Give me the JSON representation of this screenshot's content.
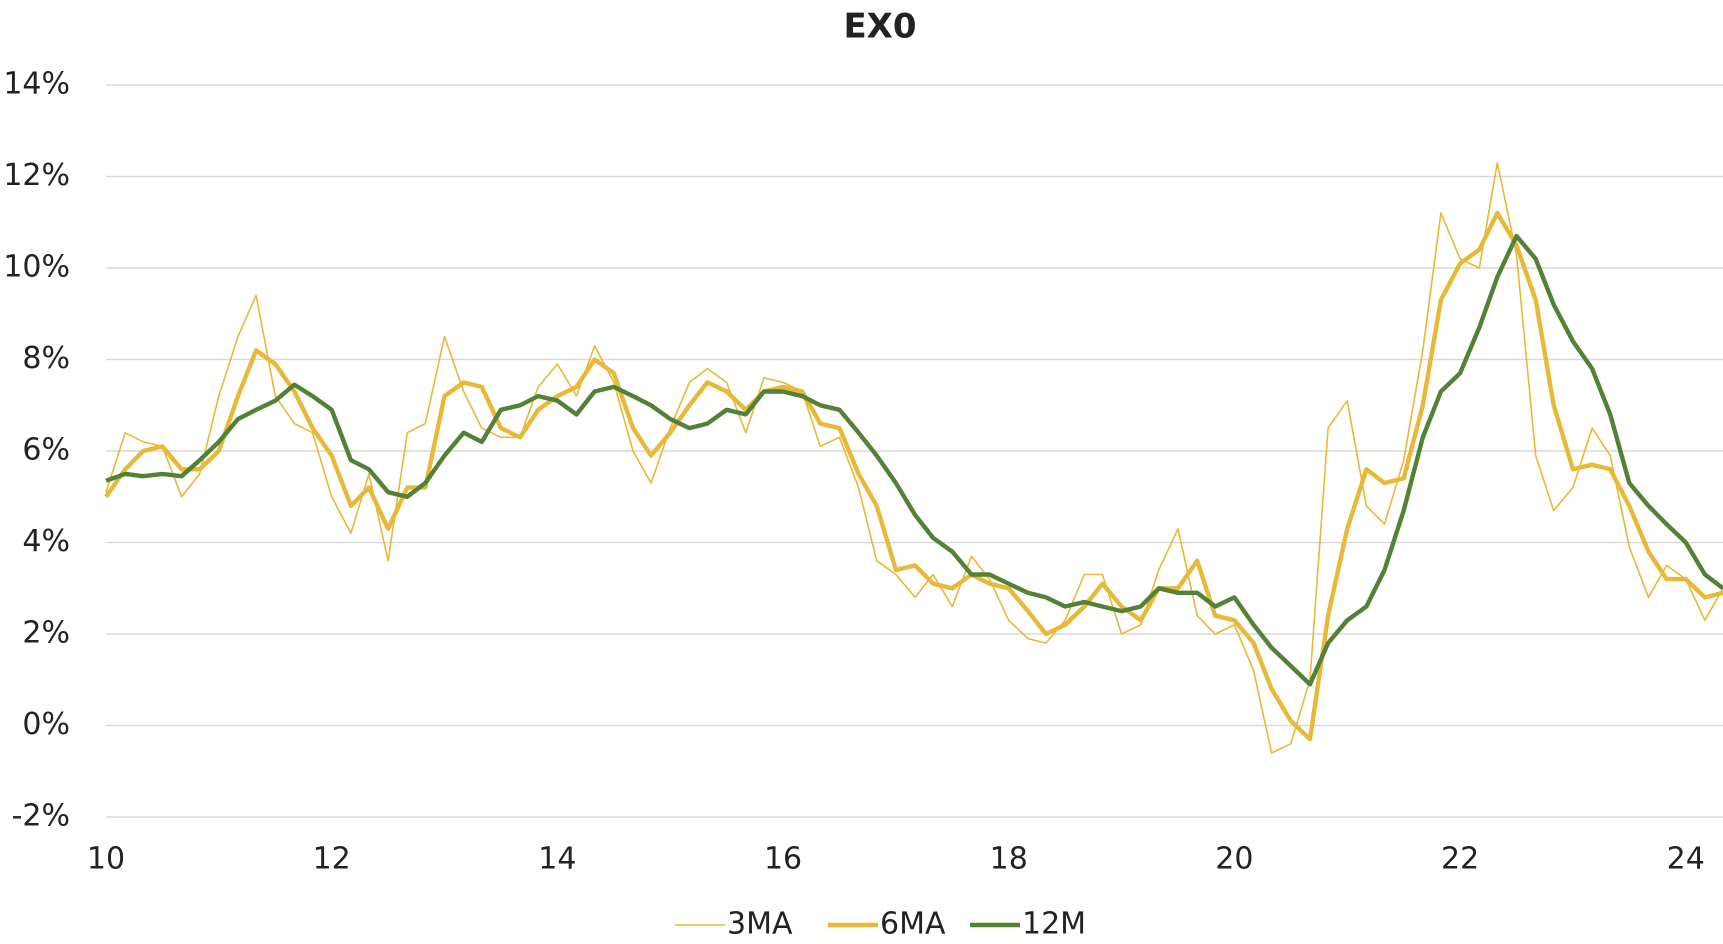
{
  "chart_data": {
    "type": "line",
    "title": "EX0",
    "x": [
      10,
      10.17,
      10.33,
      10.5,
      10.67,
      10.83,
      11,
      11.17,
      11.33,
      11.5,
      11.67,
      11.83,
      12,
      12.17,
      12.33,
      12.5,
      12.67,
      12.83,
      13,
      13.17,
      13.33,
      13.5,
      13.67,
      13.83,
      14,
      14.17,
      14.33,
      14.5,
      14.67,
      14.83,
      15,
      15.17,
      15.33,
      15.5,
      15.67,
      15.83,
      16,
      16.17,
      16.33,
      16.5,
      16.67,
      16.83,
      17,
      17.17,
      17.33,
      17.5,
      17.67,
      17.83,
      18,
      18.17,
      18.33,
      18.5,
      18.67,
      18.83,
      19,
      19.17,
      19.33,
      19.5,
      19.67,
      19.83,
      20,
      20.17,
      20.33,
      20.5,
      20.67,
      20.83,
      21,
      21.17,
      21.33,
      21.5,
      21.67,
      21.83,
      22,
      22.17,
      22.33,
      22.5,
      22.67,
      22.83,
      23,
      23.17,
      23.33,
      23.5,
      23.67,
      23.83,
      24,
      24.17,
      24.33
    ],
    "series": [
      {
        "name": "3MA",
        "color": "#e8b838",
        "line_width": 1.6,
        "values": [
          5.1,
          6.4,
          6.2,
          6.1,
          5.0,
          5.5,
          7.2,
          8.5,
          9.4,
          7.2,
          6.6,
          6.4,
          5.0,
          4.2,
          5.5,
          3.6,
          6.4,
          6.6,
          8.5,
          7.3,
          6.5,
          6.3,
          6.3,
          7.4,
          7.9,
          7.2,
          8.3,
          7.5,
          6.0,
          5.3,
          6.5,
          7.5,
          7.8,
          7.5,
          6.4,
          7.6,
          7.5,
          7.3,
          6.1,
          6.3,
          5.2,
          3.6,
          3.3,
          2.8,
          3.3,
          2.6,
          3.7,
          3.2,
          2.3,
          1.9,
          1.8,
          2.3,
          3.3,
          3.3,
          2.0,
          2.2,
          3.4,
          4.3,
          2.4,
          2.0,
          2.2,
          1.2,
          -0.6,
          -0.4,
          1.0,
          6.5,
          7.1,
          4.8,
          4.4,
          5.8,
          8.2,
          11.2,
          10.2,
          10.0,
          12.3,
          10.3,
          5.9,
          4.7,
          5.2,
          6.5,
          5.9,
          3.9,
          2.8,
          3.5,
          3.2,
          2.3,
          3.0
        ]
      },
      {
        "name": "6MA",
        "color": "#e8b838",
        "line_width": 4.4,
        "values": [
          5.0,
          5.6,
          6.0,
          6.1,
          5.6,
          5.6,
          6.0,
          7.2,
          8.2,
          7.9,
          7.3,
          6.5,
          5.9,
          4.8,
          5.2,
          4.3,
          5.2,
          5.2,
          7.2,
          7.5,
          7.4,
          6.5,
          6.3,
          6.9,
          7.2,
          7.4,
          8.0,
          7.7,
          6.5,
          5.9,
          6.4,
          7.0,
          7.5,
          7.3,
          6.9,
          7.3,
          7.4,
          7.3,
          6.6,
          6.5,
          5.5,
          4.8,
          3.4,
          3.5,
          3.1,
          3.0,
          3.3,
          3.1,
          3.0,
          2.5,
          2.0,
          2.2,
          2.6,
          3.1,
          2.6,
          2.3,
          3.0,
          3.0,
          3.6,
          2.4,
          2.3,
          1.8,
          0.8,
          0.1,
          -0.3,
          2.4,
          4.3,
          5.6,
          5.3,
          5.4,
          7.0,
          9.3,
          10.1,
          10.4,
          11.2,
          10.5,
          9.3,
          7.0,
          5.6,
          5.7,
          5.6,
          4.8,
          3.8,
          3.2,
          3.2,
          2.8,
          2.9
        ]
      },
      {
        "name": "12M",
        "color": "#538135",
        "line_width": 4.4,
        "values": [
          5.35,
          5.5,
          5.45,
          5.5,
          5.45,
          5.8,
          6.2,
          6.7,
          6.9,
          7.1,
          7.45,
          7.2,
          6.9,
          5.8,
          5.6,
          5.1,
          5.0,
          5.3,
          5.9,
          6.4,
          6.2,
          6.9,
          7.0,
          7.2,
          7.1,
          6.8,
          7.3,
          7.4,
          7.2,
          7.0,
          6.7,
          6.5,
          6.6,
          6.9,
          6.8,
          7.3,
          7.3,
          7.2,
          7.0,
          6.9,
          6.4,
          5.9,
          5.3,
          4.6,
          4.1,
          3.8,
          3.3,
          3.3,
          3.1,
          2.9,
          2.8,
          2.6,
          2.7,
          2.6,
          2.5,
          2.6,
          3.0,
          2.9,
          2.9,
          2.6,
          2.8,
          2.2,
          1.7,
          1.3,
          0.9,
          1.8,
          2.3,
          2.6,
          3.4,
          4.7,
          6.3,
          7.3,
          7.7,
          8.7,
          9.8,
          10.7,
          10.2,
          9.2,
          8.4,
          7.8,
          6.8,
          5.3,
          4.8,
          4.4,
          4.0,
          3.3,
          3.0
        ]
      }
    ],
    "xlim": [
      10,
      24.33
    ],
    "xticks": [
      10,
      12,
      14,
      16,
      18,
      20,
      22,
      24
    ],
    "ylim": [
      -2,
      14
    ],
    "yticks": [
      {
        "value": -2,
        "label": "-2%"
      },
      {
        "value": 0,
        "label": "0%"
      },
      {
        "value": 2,
        "label": "2%"
      },
      {
        "value": 4,
        "label": "4%"
      },
      {
        "value": 6,
        "label": "6%"
      },
      {
        "value": 8,
        "label": "8%"
      },
      {
        "value": 10,
        "label": "10%"
      },
      {
        "value": 12,
        "label": "12%"
      },
      {
        "value": 14,
        "label": "14%"
      }
    ],
    "grid": true,
    "legend": "bottom"
  }
}
